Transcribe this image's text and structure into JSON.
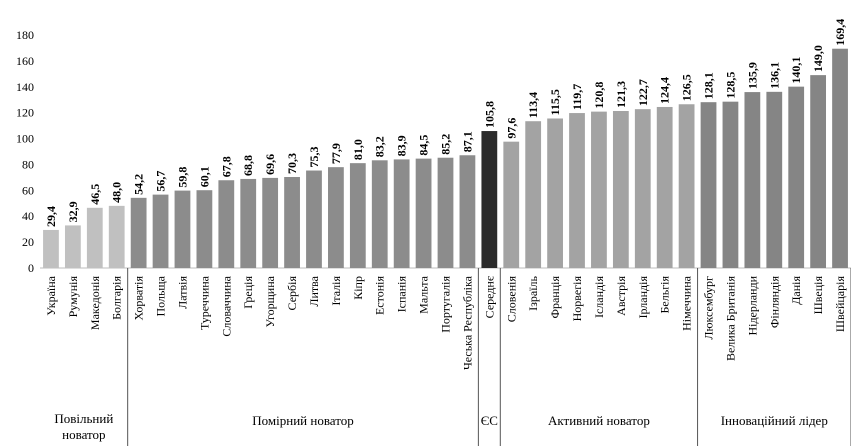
{
  "chart_data": {
    "type": "bar",
    "title": "",
    "xlabel": "",
    "ylabel": "",
    "ylim": [
      0,
      180
    ],
    "yticks": [
      0,
      20,
      40,
      60,
      80,
      100,
      120,
      140,
      160,
      180
    ],
    "grid": false,
    "categories": [
      "Україна",
      "Румунія",
      "Македонія",
      "Болгарія",
      "Хорватія",
      "Польща",
      "Латвія",
      "Туреччина",
      "Словаччина",
      "Греція",
      "Угорщина",
      "Сербія",
      "Литва",
      "Італія",
      "Кіпр",
      "Естонія",
      "Іспанія",
      "Мальта",
      "Португалія",
      "Чеська Республіка",
      "Середнє",
      "Словенія",
      "Ізраїль",
      "Франція",
      "Норвегія",
      "Ісландія",
      "Австрія",
      "Ірландія",
      "Бельгія",
      "Німеччина",
      "Люксембург",
      "Велика Британія",
      "Нідерланди",
      "Фінляндія",
      "Данія",
      "Швеція",
      "Швейцарія"
    ],
    "values": [
      29.4,
      32.9,
      46.5,
      48.0,
      54.2,
      56.7,
      59.8,
      60.1,
      67.8,
      68.8,
      69.6,
      70.3,
      75.3,
      77.9,
      81.0,
      83.2,
      83.9,
      84.5,
      85.2,
      87.1,
      105.8,
      97.6,
      113.4,
      115.5,
      119.7,
      120.8,
      121.3,
      122.7,
      124.4,
      126.5,
      128.1,
      128.5,
      135.9,
      136.1,
      140.1,
      149.0,
      169.4
    ],
    "value_labels": [
      "29,4",
      "32,9",
      "46,5",
      "48,0",
      "54,2",
      "56,7",
      "59,8",
      "60,1",
      "67,8",
      "68,8",
      "69,6",
      "70,3",
      "75,3",
      "77,9",
      "81,0",
      "83,2",
      "83,9",
      "84,5",
      "85,2",
      "87,1",
      "105,8",
      "97,6",
      "113,4",
      "115,5",
      "119,7",
      "120,8",
      "121,3",
      "122,7",
      "124,4",
      "126,5",
      "128,1",
      "128,5",
      "135,9",
      "136,1",
      "140,1",
      "149,0",
      "169,4"
    ],
    "groups": [
      {
        "lines": [
          "Повільний",
          "новатор"
        ],
        "start": 0,
        "end": 3,
        "color": "#c0c0c0"
      },
      {
        "lines": [
          "Помірний новатор"
        ],
        "start": 4,
        "end": 19,
        "color": "#8c8c8c"
      },
      {
        "lines": [
          "ЄС"
        ],
        "start": 20,
        "end": 20,
        "color": "#2b2b2b"
      },
      {
        "lines": [
          "Активний новатор"
        ],
        "start": 21,
        "end": 29,
        "color": "#a3a3a3"
      },
      {
        "lines": [
          "Інноваційний лідер"
        ],
        "start": 30,
        "end": 36,
        "color": "#858585"
      }
    ]
  }
}
